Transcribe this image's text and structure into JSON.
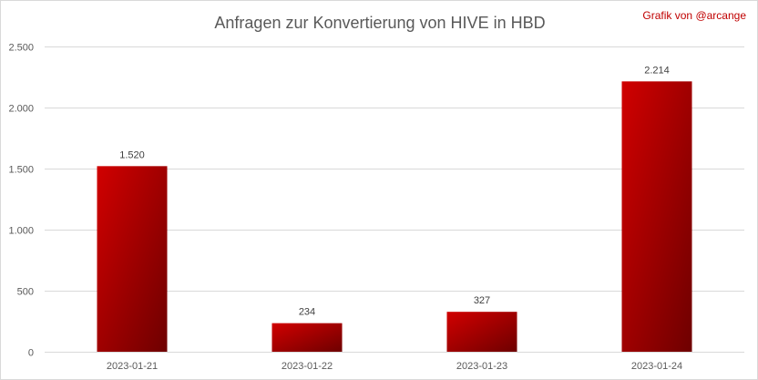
{
  "chart_data": {
    "type": "bar",
    "title": "Anfragen zur Konvertierung von HIVE in HBD",
    "credit": "Grafik von @arcange",
    "categories": [
      "2023-01-21",
      "2023-01-22",
      "2023-01-23",
      "2023-01-24"
    ],
    "values": [
      1520,
      234,
      327,
      2214
    ],
    "data_labels": [
      "1.520",
      "234",
      "327",
      "2.214"
    ],
    "y_ticks": [
      0,
      500,
      1000,
      1500,
      2000,
      2500
    ],
    "y_tick_labels": [
      "0",
      "500",
      "1.000",
      "1.500",
      "2.000",
      "2.500"
    ],
    "ylim": [
      0,
      2500
    ],
    "xlabel": "",
    "ylabel": "",
    "grid": true,
    "legend": false,
    "colors": {
      "bar_light": "#d10000",
      "bar_dark": "#6e0000",
      "gridline": "#d9d9d9",
      "axis_text": "#595959",
      "credit": "#c00000"
    }
  }
}
